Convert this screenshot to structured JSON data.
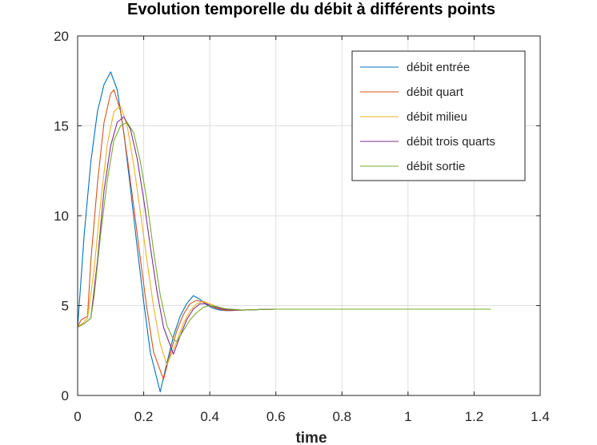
{
  "chart_data": {
    "type": "line",
    "title": "Evolution temporelle du débit à différents points",
    "xlabel": "time",
    "ylabel": "",
    "xlim": [
      0,
      1.4
    ],
    "ylim": [
      0,
      20
    ],
    "xticks": [
      0,
      0.2,
      0.4,
      0.6,
      0.8,
      1,
      1.2,
      1.4
    ],
    "xtick_labels": [
      "0",
      "0.2",
      "0.4",
      "0.6",
      "0.8",
      "1",
      "1.2",
      "1.4"
    ],
    "yticks": [
      0,
      5,
      10,
      15,
      20
    ],
    "ytick_labels": [
      "0",
      "5",
      "10",
      "15",
      "20"
    ],
    "grid": true,
    "legend_position": "top-right",
    "series": [
      {
        "name": "débit entrée",
        "color": "#0072BD",
        "x": [
          0,
          0.02,
          0.04,
          0.06,
          0.08,
          0.1,
          0.12,
          0.14,
          0.16,
          0.18,
          0.2,
          0.22,
          0.25,
          0.27,
          0.29,
          0.31,
          0.33,
          0.35,
          0.37,
          0.39,
          0.41,
          0.43,
          0.45,
          0.5,
          0.55,
          0.6,
          0.8,
          1.0,
          1.25
        ],
        "y": [
          3.8,
          9.0,
          13.0,
          15.8,
          17.3,
          18.0,
          17.0,
          14.6,
          11.5,
          8.3,
          5.2,
          2.4,
          0.2,
          1.8,
          3.3,
          4.4,
          5.1,
          5.55,
          5.35,
          5.05,
          4.85,
          4.75,
          4.72,
          4.75,
          4.78,
          4.8,
          4.8,
          4.8,
          4.8
        ]
      },
      {
        "name": "débit quart",
        "color": "#D95319",
        "x": [
          0,
          0.01,
          0.03,
          0.04,
          0.06,
          0.08,
          0.1,
          0.11,
          0.13,
          0.15,
          0.17,
          0.19,
          0.21,
          0.23,
          0.26,
          0.28,
          0.3,
          0.32,
          0.34,
          0.36,
          0.38,
          0.4,
          0.42,
          0.44,
          0.46,
          0.5,
          0.55,
          0.6,
          0.8,
          1.0,
          1.25
        ],
        "y": [
          3.8,
          4.2,
          4.4,
          7.5,
          11.8,
          15.2,
          16.8,
          17.0,
          15.8,
          13.3,
          10.5,
          7.6,
          4.8,
          2.4,
          0.9,
          2.3,
          3.6,
          4.5,
          5.1,
          5.3,
          5.2,
          5.0,
          4.85,
          4.75,
          4.72,
          4.75,
          4.78,
          4.8,
          4.8,
          4.8,
          4.8
        ]
      },
      {
        "name": "débit milieu",
        "color": "#EDB120",
        "x": [
          0,
          0.02,
          0.03,
          0.05,
          0.07,
          0.09,
          0.11,
          0.13,
          0.15,
          0.17,
          0.19,
          0.21,
          0.23,
          0.25,
          0.27,
          0.3,
          0.32,
          0.34,
          0.36,
          0.38,
          0.4,
          0.42,
          0.44,
          0.46,
          0.5,
          0.55,
          0.6,
          0.8,
          1.0,
          1.25
        ],
        "y": [
          3.8,
          4.1,
          4.3,
          7.0,
          10.8,
          14.0,
          15.8,
          16.1,
          15.0,
          12.8,
          10.2,
          7.5,
          4.9,
          2.9,
          1.7,
          3.0,
          4.0,
          4.7,
          5.1,
          5.25,
          5.1,
          4.95,
          4.82,
          4.75,
          4.75,
          4.78,
          4.8,
          4.8,
          4.8,
          4.8
        ]
      },
      {
        "name": "débit trois quarts",
        "color": "#7E2F8E",
        "x": [
          0,
          0.02,
          0.04,
          0.06,
          0.08,
          0.1,
          0.12,
          0.14,
          0.16,
          0.18,
          0.2,
          0.22,
          0.24,
          0.26,
          0.29,
          0.31,
          0.33,
          0.35,
          0.37,
          0.39,
          0.41,
          0.44,
          0.46,
          0.5,
          0.55,
          0.6,
          0.8,
          1.0,
          1.25
        ],
        "y": [
          3.8,
          4.0,
          4.3,
          7.5,
          11.4,
          13.9,
          15.2,
          15.5,
          14.8,
          13.2,
          10.9,
          8.3,
          5.8,
          3.8,
          2.3,
          3.3,
          4.2,
          4.8,
          5.1,
          5.1,
          4.95,
          4.8,
          4.75,
          4.75,
          4.78,
          4.8,
          4.8,
          4.8,
          4.8
        ]
      },
      {
        "name": "débit sortie",
        "color": "#77AC30",
        "x": [
          0,
          0.02,
          0.04,
          0.05,
          0.07,
          0.09,
          0.11,
          0.13,
          0.15,
          0.17,
          0.19,
          0.21,
          0.23,
          0.25,
          0.27,
          0.29,
          0.3,
          0.32,
          0.34,
          0.36,
          0.38,
          0.4,
          0.42,
          0.45,
          0.5,
          0.55,
          0.6,
          0.8,
          1.0,
          1.25
        ],
        "y": [
          3.8,
          4.0,
          4.3,
          5.5,
          9.0,
          12.0,
          14.2,
          15.0,
          15.2,
          14.6,
          13.0,
          10.8,
          8.0,
          5.6,
          3.9,
          3.1,
          3.0,
          3.6,
          4.2,
          4.6,
          4.9,
          5.0,
          4.95,
          4.82,
          4.75,
          4.78,
          4.8,
          4.8,
          4.8,
          4.8
        ]
      }
    ]
  }
}
